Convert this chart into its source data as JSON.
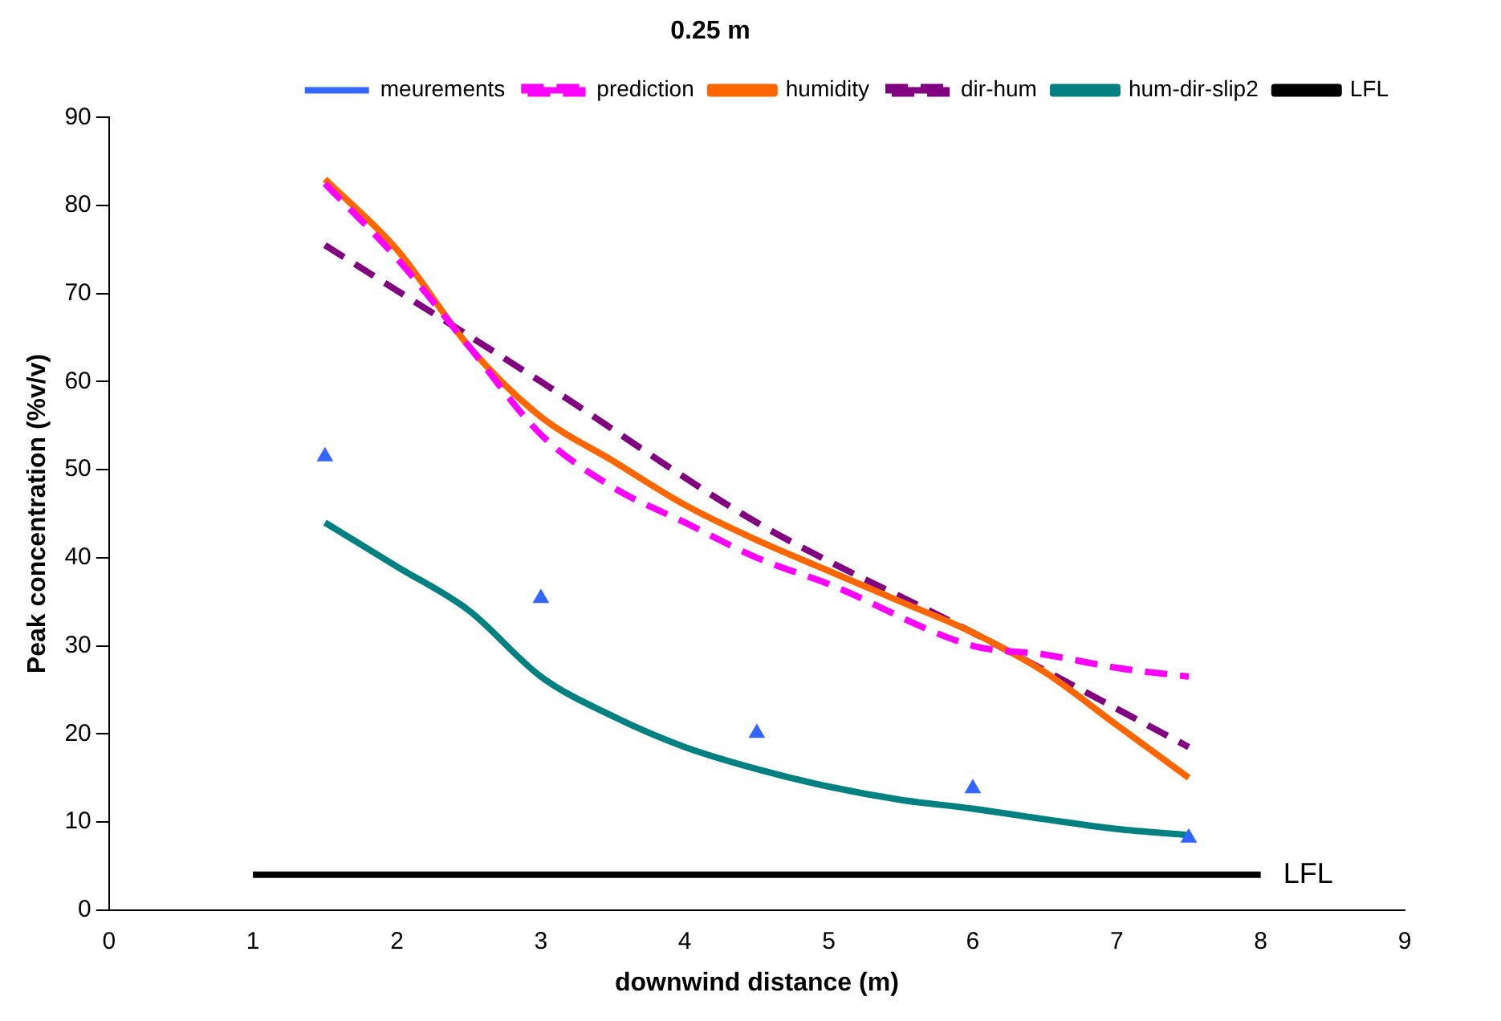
{
  "chart_data": {
    "type": "line",
    "title": "0.25 m",
    "xlabel": "downwind distance (m)",
    "ylabel": "Peak concentration (%v/v)",
    "xlim": [
      0,
      9
    ],
    "xticks": [
      0,
      1,
      2,
      3,
      4,
      5,
      6,
      7,
      8,
      9
    ],
    "ylim": [
      0,
      90
    ],
    "yticks": [
      0,
      10,
      20,
      30,
      40,
      50,
      60,
      70,
      80,
      90
    ],
    "grid": false,
    "legend": "top right",
    "annotations": [
      {
        "text": "LFL",
        "x": 8,
        "y": 4
      }
    ],
    "series": [
      {
        "name": "meurements",
        "type": "scatter",
        "marker": "triangle",
        "color": "#3366ff",
        "x": [
          1.5,
          3,
          4.5,
          6,
          7.5
        ],
        "values": [
          51.5,
          35.4,
          20.1,
          13.8,
          8.2
        ]
      },
      {
        "name": "prediction",
        "line_style": "dashed",
        "color": "#ff00ff",
        "x": [
          1.5,
          2,
          2.5,
          3,
          3.5,
          4,
          4.5,
          5,
          6,
          6.5,
          7,
          7.5
        ],
        "values": [
          82.5,
          74,
          64,
          54,
          48,
          44,
          40,
          37,
          30,
          29,
          27.5,
          26.5
        ]
      },
      {
        "name": "humidity",
        "line_style": "solid",
        "color": "#ff6600",
        "x": [
          1.5,
          2,
          2.5,
          3,
          3.5,
          4,
          4.5,
          5,
          5.5,
          6,
          6.5,
          7,
          7.5
        ],
        "values": [
          83,
          75,
          64,
          56,
          51,
          46,
          42,
          38.5,
          35,
          31.5,
          27,
          21,
          15
        ]
      },
      {
        "name": "dir-hum",
        "line_style": "dashed",
        "color": "#800080",
        "x": [
          1.5,
          3,
          4.5,
          6,
          7.5
        ],
        "values": [
          75.5,
          60,
          44,
          31.5,
          18.5
        ]
      },
      {
        "name": "hum-dir-slip2",
        "line_style": "solid",
        "color": "#008080",
        "x": [
          1.5,
          2,
          2.5,
          3,
          3.5,
          4,
          4.5,
          5,
          5.5,
          6,
          6.5,
          7,
          7.5
        ],
        "values": [
          44,
          39,
          34,
          26.5,
          22,
          18.5,
          16,
          14,
          12.5,
          11.5,
          10.3,
          9.2,
          8.5
        ]
      },
      {
        "name": "LFL",
        "line_style": "solid",
        "color": "#000000",
        "x": [
          1,
          8
        ],
        "values": [
          4,
          4
        ]
      }
    ]
  }
}
